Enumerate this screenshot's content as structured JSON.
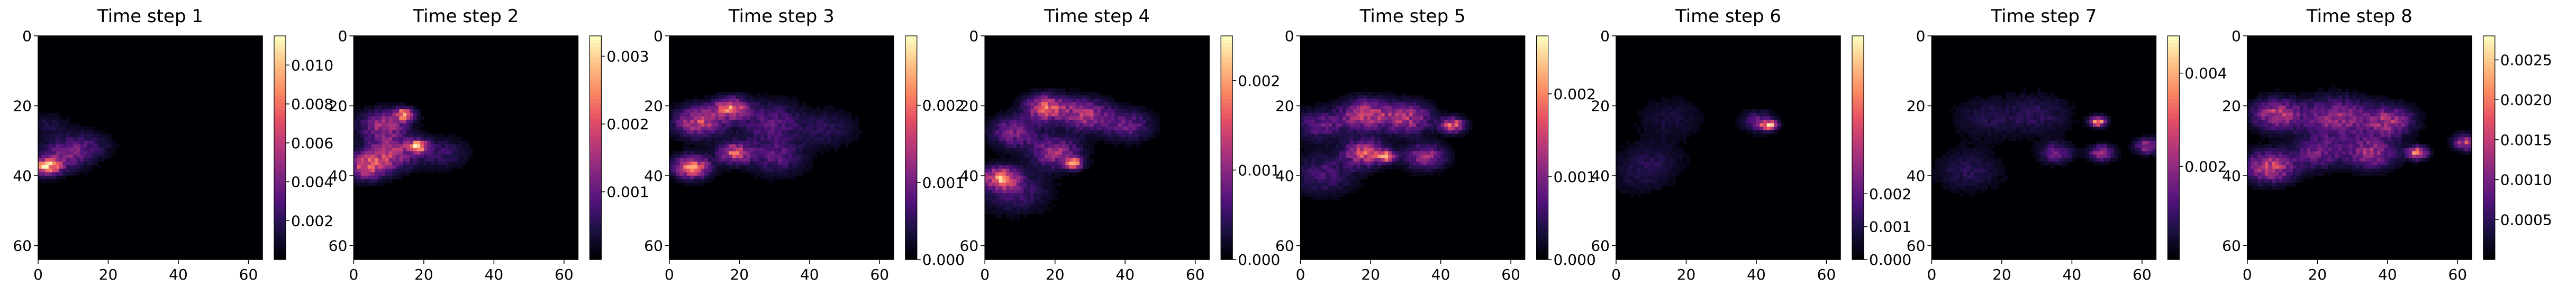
{
  "figure": {
    "background": "#ffffff"
  },
  "chart_data": [
    {
      "type": "heatmap",
      "title": "Time step 1",
      "x_ticks": [
        "0",
        "20",
        "40",
        "60"
      ],
      "y_ticks": [
        "0",
        "20",
        "40",
        "60"
      ],
      "xlim": [
        0,
        64
      ],
      "ylim": [
        64,
        0
      ],
      "grid_size": [
        64,
        64
      ],
      "colorbar_ticks": [
        "0.002",
        "0.004",
        "0.006",
        "0.008",
        "0.010"
      ],
      "colorbar_tick_values": [
        0.002,
        0.004,
        0.006,
        0.008,
        0.01
      ],
      "colorbar_range": [
        0,
        0.0115
      ],
      "hotspots": [
        {
          "x": 2,
          "y": 37,
          "value": 0.011,
          "spread": 1.6
        },
        {
          "x": 6,
          "y": 34,
          "value": 0.0045,
          "spread": 3.0
        },
        {
          "x": 13,
          "y": 31,
          "value": 0.003,
          "spread": 3.0
        },
        {
          "x": 2,
          "y": 25,
          "value": 0.0018,
          "spread": 2.5
        }
      ]
    },
    {
      "type": "heatmap",
      "title": "Time step 2",
      "x_ticks": [
        "0",
        "20",
        "40",
        "60"
      ],
      "y_ticks": [
        "0",
        "20",
        "40",
        "60"
      ],
      "xlim": [
        0,
        64
      ],
      "ylim": [
        64,
        0
      ],
      "grid_size": [
        64,
        64
      ],
      "colorbar_ticks": [
        "0.001",
        "0.002",
        "0.003"
      ],
      "colorbar_tick_values": [
        0.001,
        0.002,
        0.003
      ],
      "colorbar_range": [
        0,
        0.0033
      ],
      "hotspots": [
        {
          "x": 14,
          "y": 22,
          "value": 0.0032,
          "spread": 1.2
        },
        {
          "x": 8,
          "y": 25,
          "value": 0.0018,
          "spread": 3.0
        },
        {
          "x": 18,
          "y": 31,
          "value": 0.0032,
          "spread": 1.2
        },
        {
          "x": 10,
          "y": 33,
          "value": 0.002,
          "spread": 3.2
        },
        {
          "x": 3,
          "y": 37,
          "value": 0.0022,
          "spread": 2.5
        },
        {
          "x": 25,
          "y": 33,
          "value": 0.0008,
          "spread": 3.0
        }
      ]
    },
    {
      "type": "heatmap",
      "title": "Time step 3",
      "x_ticks": [
        "0",
        "20",
        "40",
        "60"
      ],
      "y_ticks": [
        "0",
        "20",
        "40",
        "60"
      ],
      "xlim": [
        0,
        64
      ],
      "ylim": [
        64,
        0
      ],
      "grid_size": [
        64,
        64
      ],
      "colorbar_ticks": [
        "0.000",
        "0.001",
        "0.002"
      ],
      "colorbar_tick_values": [
        0.0,
        0.001,
        0.002
      ],
      "colorbar_range": [
        0,
        0.0029
      ],
      "hotspots": [
        {
          "x": 17,
          "y": 20,
          "value": 0.0024,
          "spread": 2.0
        },
        {
          "x": 8,
          "y": 24,
          "value": 0.002,
          "spread": 3.0
        },
        {
          "x": 28,
          "y": 24,
          "value": 0.001,
          "spread": 4.0
        },
        {
          "x": 18,
          "y": 33,
          "value": 0.0022,
          "spread": 2.0
        },
        {
          "x": 6,
          "y": 37,
          "value": 0.0026,
          "spread": 2.2
        },
        {
          "x": 30,
          "y": 34,
          "value": 0.001,
          "spread": 3.5
        },
        {
          "x": 45,
          "y": 26,
          "value": 0.0006,
          "spread": 3.5
        }
      ]
    },
    {
      "type": "heatmap",
      "title": "Time step 4",
      "x_ticks": [
        "0",
        "20",
        "40",
        "60"
      ],
      "y_ticks": [
        "0",
        "20",
        "40",
        "60"
      ],
      "xlim": [
        0,
        64
      ],
      "ylim": [
        64,
        0
      ],
      "grid_size": [
        64,
        64
      ],
      "colorbar_ticks": [
        "0.000",
        "0.001",
        "0.002"
      ],
      "colorbar_tick_values": [
        0.0,
        0.001,
        0.002
      ],
      "colorbar_range": [
        0,
        0.0025
      ],
      "hotspots": [
        {
          "x": 17,
          "y": 20,
          "value": 0.002,
          "spread": 2.5
        },
        {
          "x": 28,
          "y": 22,
          "value": 0.0015,
          "spread": 3.0
        },
        {
          "x": 8,
          "y": 27,
          "value": 0.0012,
          "spread": 3.0
        },
        {
          "x": 40,
          "y": 25,
          "value": 0.001,
          "spread": 3.0
        },
        {
          "x": 20,
          "y": 33,
          "value": 0.0014,
          "spread": 3.0
        },
        {
          "x": 25,
          "y": 36,
          "value": 0.0025,
          "spread": 1.0
        },
        {
          "x": 4,
          "y": 40,
          "value": 0.0023,
          "spread": 2.0
        },
        {
          "x": 8,
          "y": 44,
          "value": 0.0008,
          "spread": 4.0
        }
      ]
    },
    {
      "type": "heatmap",
      "title": "Time step 5",
      "x_ticks": [
        "0",
        "20",
        "40",
        "60"
      ],
      "y_ticks": [
        "0",
        "20",
        "40",
        "60"
      ],
      "xlim": [
        0,
        64
      ],
      "ylim": [
        64,
        0
      ],
      "grid_size": [
        64,
        64
      ],
      "colorbar_ticks": [
        "0.000",
        "0.001",
        "0.002"
      ],
      "colorbar_tick_values": [
        0.0,
        0.001,
        0.002
      ],
      "colorbar_range": [
        0,
        0.0027
      ],
      "hotspots": [
        {
          "x": 18,
          "y": 22,
          "value": 0.0018,
          "spread": 3.0
        },
        {
          "x": 30,
          "y": 23,
          "value": 0.0016,
          "spread": 3.0
        },
        {
          "x": 43,
          "y": 25,
          "value": 0.0022,
          "spread": 1.5
        },
        {
          "x": 5,
          "y": 25,
          "value": 0.001,
          "spread": 3.0
        },
        {
          "x": 18,
          "y": 33,
          "value": 0.002,
          "spread": 2.5
        },
        {
          "x": 24,
          "y": 34,
          "value": 0.0027,
          "spread": 1.0
        },
        {
          "x": 35,
          "y": 34,
          "value": 0.0015,
          "spread": 2.5
        },
        {
          "x": 6,
          "y": 39,
          "value": 0.0008,
          "spread": 4.0
        }
      ]
    },
    {
      "type": "heatmap",
      "title": "Time step 6",
      "x_ticks": [
        "0",
        "20",
        "40",
        "60"
      ],
      "y_ticks": [
        "0",
        "20",
        "40",
        "60"
      ],
      "xlim": [
        0,
        64
      ],
      "ylim": [
        64,
        0
      ],
      "grid_size": [
        64,
        64
      ],
      "colorbar_ticks": [
        "0.000",
        "0.001",
        "0.002"
      ],
      "colorbar_tick_values": [
        0.0,
        0.001,
        0.002
      ],
      "colorbar_range": [
        0,
        0.0068
      ],
      "hotspots": [
        {
          "x": 43,
          "y": 25,
          "value": 0.0068,
          "spread": 1.0
        },
        {
          "x": 40,
          "y": 24,
          "value": 0.0025,
          "spread": 2.0
        },
        {
          "x": 15,
          "y": 23,
          "value": 0.001,
          "spread": 4.0
        },
        {
          "x": 10,
          "y": 35,
          "value": 0.001,
          "spread": 4.0
        },
        {
          "x": 5,
          "y": 40,
          "value": 0.0007,
          "spread": 4.0
        }
      ]
    },
    {
      "type": "heatmap",
      "title": "Time step 7",
      "x_ticks": [
        "0",
        "20",
        "40",
        "60"
      ],
      "y_ticks": [
        "0",
        "20",
        "40",
        "60"
      ],
      "xlim": [
        0,
        64
      ],
      "ylim": [
        64,
        0
      ],
      "grid_size": [
        64,
        64
      ],
      "colorbar_ticks": [
        "0.002",
        "0.004"
      ],
      "colorbar_tick_values": [
        0.002,
        0.004
      ],
      "colorbar_range": [
        0,
        0.0048
      ],
      "hotspots": [
        {
          "x": 47,
          "y": 24,
          "value": 0.0048,
          "spread": 1.0
        },
        {
          "x": 30,
          "y": 22,
          "value": 0.001,
          "spread": 4.0
        },
        {
          "x": 35,
          "y": 33,
          "value": 0.002,
          "spread": 2.0
        },
        {
          "x": 48,
          "y": 33,
          "value": 0.003,
          "spread": 1.5
        },
        {
          "x": 61,
          "y": 31,
          "value": 0.0028,
          "spread": 1.5
        },
        {
          "x": 10,
          "y": 38,
          "value": 0.001,
          "spread": 4.0
        },
        {
          "x": 15,
          "y": 23,
          "value": 0.0008,
          "spread": 4.0
        }
      ]
    },
    {
      "type": "heatmap",
      "title": "Time step 8",
      "x_ticks": [
        "0",
        "20",
        "40",
        "60"
      ],
      "y_ticks": [
        "0",
        "20",
        "40",
        "60"
      ],
      "xlim": [
        0,
        64
      ],
      "ylim": [
        64,
        0
      ],
      "grid_size": [
        64,
        64
      ],
      "colorbar_ticks": [
        "0.0005",
        "0.0010",
        "0.0015",
        "0.0020",
        "0.0025"
      ],
      "colorbar_tick_values": [
        0.0005,
        0.001,
        0.0015,
        0.002,
        0.0025
      ],
      "colorbar_range": [
        0,
        0.0028
      ],
      "hotspots": [
        {
          "x": 8,
          "y": 22,
          "value": 0.0018,
          "spread": 3.0
        },
        {
          "x": 25,
          "y": 23,
          "value": 0.0015,
          "spread": 4.0
        },
        {
          "x": 40,
          "y": 24,
          "value": 0.0016,
          "spread": 3.0
        },
        {
          "x": 48,
          "y": 33,
          "value": 0.0028,
          "spread": 1.2
        },
        {
          "x": 35,
          "y": 33,
          "value": 0.0016,
          "spread": 3.0
        },
        {
          "x": 6,
          "y": 37,
          "value": 0.002,
          "spread": 3.0
        },
        {
          "x": 62,
          "y": 30,
          "value": 0.002,
          "spread": 1.5
        },
        {
          "x": 20,
          "y": 33,
          "value": 0.0012,
          "spread": 3.0
        }
      ]
    }
  ]
}
